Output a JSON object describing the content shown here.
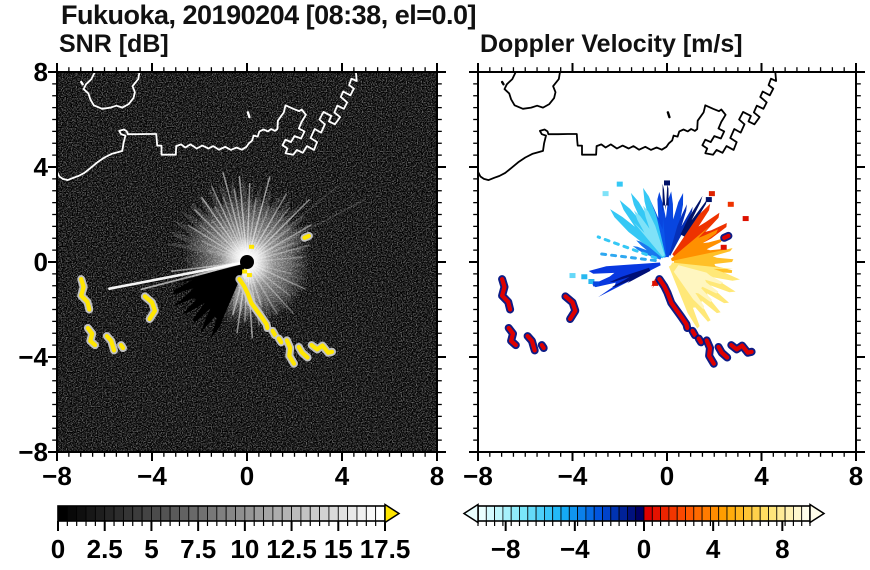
{
  "title": "Fukuoka, 20190204 [08:38, el=0.0]",
  "chart_data": {
    "type": "heatmap",
    "suptitle": "Fukuoka, 20190204 [08:38, el=0.0]",
    "station": "Fukuoka",
    "date": "20190204",
    "time": "08:38",
    "elevation_deg": 0.0,
    "layout": "two radar PPI panels side by side, radar at origin, coastline overlay, horizontal colorbars below",
    "axes": {
      "xlim": [
        -8,
        8
      ],
      "ylim": [
        -8,
        8
      ],
      "major_tick_values": [
        -8,
        -4,
        0,
        4,
        8
      ],
      "minor_tick_step": 0.5,
      "x_tick_labels": [
        "−8",
        "−4",
        "0",
        "4",
        "8"
      ],
      "y_tick_labels": [
        "8",
        "4",
        "0",
        "−4",
        "−8"
      ]
    },
    "panels": [
      {
        "id": "snr",
        "title": "SNR [dB]",
        "bg": "#000000",
        "coast_color": "#ffffff",
        "colorbar": {
          "min": 0,
          "max": 17.5,
          "segments": 35,
          "tick_values": [
            0,
            2.5,
            5,
            7.5,
            10,
            12.5,
            15,
            17.5
          ],
          "tick_labels": [
            "0",
            "2.5",
            "5",
            "7.5",
            "10",
            "12.5",
            "15",
            "17.5"
          ],
          "stops": [
            "#000000",
            "#ffffff"
          ],
          "over_color": "#ffe600",
          "arrows": "right"
        },
        "radar_center": [
          0,
          0
        ],
        "clutter_color": "#ffe600",
        "clutter_halo": "#c9c9c9",
        "fog_wedges": [
          [
            20,
            85,
            3.3,
            0.12
          ],
          [
            85,
            168,
            3.6,
            0.13
          ],
          [
            250,
            292,
            2.4,
            0.2
          ],
          [
            292,
            350,
            2.7,
            0.07
          ],
          [
            -10,
            20,
            2.6,
            0.1
          ],
          [
            168,
            185,
            1.5,
            0.05
          ]
        ],
        "rays": [
          [
            5,
            2.3,
            0.22
          ],
          [
            15,
            2.7,
            0.3
          ],
          [
            22,
            2.1,
            0.25
          ],
          [
            28,
            5.6,
            0.15
          ],
          [
            30,
            3.1,
            0.4
          ],
          [
            38,
            2.3,
            0.3
          ],
          [
            40,
            5.0,
            0.12
          ],
          [
            45,
            3.7,
            0.5
          ],
          [
            52,
            2.9,
            0.35
          ],
          [
            60,
            3.3,
            0.45
          ],
          [
            68,
            2.5,
            0.3
          ],
          [
            75,
            3.7,
            0.55
          ],
          [
            82,
            2.7,
            0.35
          ],
          [
            88,
            3.3,
            0.5
          ],
          [
            95,
            3.6,
            0.55
          ],
          [
            100,
            3.1,
            0.4
          ],
          [
            105,
            3.9,
            0.5
          ],
          [
            110,
            2.9,
            0.35
          ],
          [
            115,
            3.5,
            0.45
          ],
          [
            120,
            2.7,
            0.3
          ],
          [
            125,
            3.3,
            0.5
          ],
          [
            130,
            2.3,
            0.3
          ],
          [
            135,
            3.1,
            0.45
          ],
          [
            142,
            2.5,
            0.3
          ],
          [
            148,
            2.9,
            0.4
          ],
          [
            155,
            2.1,
            0.25
          ],
          [
            163,
            1.7,
            0.18
          ],
          [
            187,
            3.2,
            0.5,
            1.6
          ],
          [
            191,
            5.9,
            0.95,
            2.6
          ],
          [
            194.5,
            4.6,
            0.6,
            1.8
          ],
          [
            255,
            2.3,
            0.42
          ],
          [
            262,
            3.0,
            0.5
          ],
          [
            268,
            2.5,
            0.45
          ],
          [
            274,
            3.2,
            0.55
          ],
          [
            281,
            2.7,
            0.4
          ],
          [
            288,
            1.9,
            0.3
          ],
          [
            300,
            2.5,
            0.3
          ],
          [
            312,
            2.9,
            0.32
          ],
          [
            322,
            2.3,
            0.28
          ],
          [
            335,
            2.7,
            0.33
          ],
          [
            345,
            1.9,
            0.24
          ]
        ],
        "dark_wedges": [
          [
            196,
            247,
            3.6
          ]
        ],
        "center_specks": [
          [
            0.08,
            -0.55
          ],
          [
            0.17,
            0.64
          ],
          [
            -0.12,
            -0.4
          ]
        ]
      },
      {
        "id": "doppler",
        "title": "Doppler Velocity [m/s]",
        "bg": "#ffffff",
        "coast_color": "#000000",
        "colorbar": {
          "min": -9.6,
          "max": 9.6,
          "segments": 40,
          "tick_values": [
            -8,
            -4,
            0,
            4,
            8
          ],
          "tick_labels": [
            "−8",
            "−4",
            "0",
            "4",
            "8"
          ],
          "neg_stops": [
            "#eaffff",
            "#7fe9f9",
            "#18b5f8",
            "#0050dd",
            "#000065"
          ],
          "pos_stops": [
            "#dd0000",
            "#ff5500",
            "#ffa600",
            "#ffe066",
            "#fffdea"
          ],
          "arrows": "both"
        },
        "radar_center": [
          0,
          0
        ],
        "clutter_color": "#dd0000",
        "clutter_halo": "#001080",
        "velocity_patches": [
          [
            72,
            106,
            0.2,
            3.0,
            "#0846e0",
            1
          ],
          [
            95,
            120,
            0.2,
            2.0,
            "#0a55ea",
            0
          ],
          [
            103,
            142,
            0.25,
            3.3,
            "#35c8f5",
            1
          ],
          [
            108,
            130,
            0.3,
            2.6,
            "#7fe2f8",
            1
          ],
          [
            140,
            160,
            0.3,
            1.6,
            "#1a78ee",
            1
          ],
          [
            62,
            74,
            0.3,
            2.6,
            "#0630b8",
            1
          ],
          [
            55,
            64,
            1.3,
            3.2,
            "#001268",
            1
          ],
          [
            88,
            95,
            2.4,
            3.35,
            "#001268",
            1
          ],
          [
            28,
            56,
            0.4,
            3.1,
            "#ee3300",
            1
          ],
          [
            8,
            40,
            0.2,
            2.6,
            "#ff9000",
            1
          ],
          [
            -12,
            12,
            0.3,
            2.9,
            "#ffc028",
            1
          ],
          [
            -68,
            -6,
            0.2,
            3.2,
            "#ffe878",
            1
          ],
          [
            -55,
            -15,
            0.5,
            2.6,
            "#fff6c0",
            1
          ],
          [
            184,
            207,
            0.3,
            3.4,
            "#0838e0",
            1
          ],
          [
            198,
            208,
            0.8,
            2.6,
            "#001078",
            1
          ],
          [
            235,
            243,
            0.85,
            1.3,
            "#dd1100",
            0
          ]
        ],
        "dashed_rays": [
          [
            160,
            3.1,
            "#35c8f5"
          ],
          [
            173,
            2.9,
            "#2fa8f0"
          ]
        ],
        "specks": [
          [
            -3.5,
            -0.6,
            "#28b8f0"
          ],
          [
            -3.2,
            -0.8,
            "#28b8f0"
          ],
          [
            -3.0,
            -0.9,
            "#0846e0"
          ],
          [
            -4.0,
            -0.55,
            "#66d8f8"
          ],
          [
            2.4,
            0.64,
            "#dd1100"
          ],
          [
            3.33,
            1.85,
            "#dd1100"
          ],
          [
            2.7,
            2.45,
            "#ee3300"
          ],
          [
            1.9,
            2.9,
            "#dd2200"
          ],
          [
            1.77,
            2.65,
            "#001268"
          ],
          [
            0.0,
            3.35,
            "#001268"
          ],
          [
            -2.0,
            3.3,
            "#35c8f5"
          ],
          [
            -2.6,
            2.9,
            "#7fe2f8"
          ],
          [
            -0.5,
            -0.88,
            "#dd1100"
          ]
        ]
      }
    ],
    "coastline": {
      "mainland": [
        [
          -8.05,
          3.9
        ],
        [
          -7.9,
          3.6
        ],
        [
          -7.75,
          3.5
        ],
        [
          -7.55,
          3.45
        ],
        [
          -7.3,
          3.55
        ],
        [
          -7.1,
          3.62
        ],
        [
          -6.85,
          3.75
        ],
        [
          -6.6,
          3.95
        ],
        [
          -6.3,
          4.2
        ],
        [
          -6.0,
          4.4
        ],
        [
          -5.7,
          4.55
        ],
        [
          -5.45,
          4.62
        ],
        [
          -5.25,
          4.68
        ],
        [
          -5.2,
          5.0
        ],
        [
          -5.12,
          5.32
        ],
        [
          -5.3,
          5.38
        ],
        [
          -5.38,
          5.52
        ],
        [
          -5.18,
          5.58
        ],
        [
          -5.06,
          5.5
        ],
        [
          -5.02,
          5.38
        ],
        [
          -4.6,
          5.38
        ],
        [
          -4.2,
          5.39
        ],
        [
          -3.82,
          5.39
        ],
        [
          -3.8,
          5.12
        ],
        [
          -3.78,
          4.9
        ],
        [
          -3.6,
          4.9
        ],
        [
          -3.6,
          4.52
        ],
        [
          -3.3,
          4.52
        ],
        [
          -3.0,
          4.52
        ],
        [
          -2.98,
          4.88
        ],
        [
          -2.78,
          4.95
        ],
        [
          -2.6,
          4.82
        ],
        [
          -2.38,
          4.95
        ],
        [
          -2.12,
          4.78
        ],
        [
          -1.88,
          4.9
        ],
        [
          -1.62,
          4.78
        ],
        [
          -1.42,
          4.88
        ],
        [
          -1.18,
          4.73
        ],
        [
          -0.92,
          4.85
        ],
        [
          -0.68,
          4.72
        ],
        [
          -0.44,
          4.82
        ],
        [
          -0.22,
          4.73
        ],
        [
          -0.02,
          4.85
        ],
        [
          0.08,
          5.0
        ],
        [
          0.22,
          5.12
        ],
        [
          0.28,
          5.32
        ],
        [
          0.45,
          5.28
        ],
        [
          0.52,
          5.5
        ],
        [
          0.7,
          5.58
        ],
        [
          0.88,
          5.5
        ],
        [
          1.02,
          5.6
        ],
        [
          1.18,
          5.52
        ],
        [
          1.28,
          5.6
        ],
        [
          1.3,
          5.95
        ],
        [
          1.55,
          6.3
        ],
        [
          1.62,
          6.6
        ],
        [
          1.95,
          6.45
        ],
        [
          2.2,
          6.35
        ],
        [
          2.3,
          6.42
        ],
        [
          2.48,
          6.2
        ],
        [
          2.3,
          5.9
        ],
        [
          2.18,
          5.62
        ],
        [
          2.42,
          5.5
        ],
        [
          2.28,
          5.2
        ],
        [
          2.0,
          5.3
        ],
        [
          1.85,
          5.05
        ],
        [
          1.62,
          5.15
        ],
        [
          1.5,
          4.92
        ],
        [
          1.7,
          4.78
        ],
        [
          1.62,
          4.58
        ],
        [
          1.95,
          4.52
        ],
        [
          2.1,
          4.72
        ],
        [
          2.35,
          4.6
        ],
        [
          2.52,
          4.88
        ],
        [
          2.82,
          4.72
        ],
        [
          2.95,
          5.05
        ],
        [
          2.68,
          5.22
        ],
        [
          2.85,
          5.6
        ],
        [
          3.12,
          5.45
        ],
        [
          3.28,
          5.8
        ],
        [
          3.05,
          6.0
        ],
        [
          3.22,
          6.32
        ],
        [
          3.55,
          6.15
        ],
        [
          3.45,
          5.92
        ],
        [
          3.7,
          5.8
        ],
        [
          3.92,
          6.1
        ],
        [
          3.68,
          6.3
        ],
        [
          3.8,
          6.58
        ],
        [
          4.08,
          6.45
        ],
        [
          4.22,
          6.72
        ],
        [
          3.95,
          6.95
        ],
        [
          4.05,
          7.18
        ],
        [
          4.35,
          7.02
        ],
        [
          4.5,
          7.3
        ],
        [
          4.3,
          7.45
        ],
        [
          4.4,
          7.72
        ],
        [
          4.62,
          7.62
        ],
        [
          4.58,
          8.05
        ]
      ],
      "island": [
        [
          -6.38,
          8.05
        ],
        [
          -6.55,
          7.7
        ],
        [
          -6.78,
          7.48
        ],
        [
          -6.88,
          7.28
        ],
        [
          -6.68,
          7.1
        ],
        [
          -6.6,
          6.85
        ],
        [
          -6.45,
          6.6
        ],
        [
          -6.1,
          6.45
        ],
        [
          -5.75,
          6.5
        ],
        [
          -5.5,
          6.58
        ],
        [
          -5.25,
          6.5
        ],
        [
          -4.98,
          6.65
        ],
        [
          -4.78,
          6.9
        ],
        [
          -4.72,
          7.15
        ],
        [
          -4.82,
          7.4
        ],
        [
          -4.58,
          7.7
        ],
        [
          -4.52,
          8.05
        ]
      ],
      "islets": [
        [
          [
            -6.98,
            7.58
          ],
          [
            -6.92,
            7.48
          ]
        ],
        [
          [
            0.04,
            6.3
          ],
          [
            0.1,
            6.1
          ]
        ]
      ]
    },
    "clutter_blobs": {
      "west_group": [
        [
          [
            -6.98,
            -0.72
          ],
          [
            -6.88,
            -1.05
          ],
          [
            -6.98,
            -1.42
          ],
          [
            -6.72,
            -1.68
          ],
          [
            -6.64,
            -2.0
          ]
        ],
        [
          [
            -4.3,
            -1.45
          ],
          [
            -4.0,
            -1.7
          ],
          [
            -3.88,
            -2.05
          ],
          [
            -4.1,
            -2.4
          ]
        ],
        [
          [
            -6.7,
            -2.78
          ],
          [
            -6.52,
            -3.02
          ],
          [
            -6.6,
            -3.32
          ],
          [
            -6.4,
            -3.5
          ]
        ],
        [
          [
            -5.9,
            -3.12
          ],
          [
            -5.72,
            -3.32
          ],
          [
            -5.6,
            -3.72
          ]
        ],
        [
          [
            -5.3,
            -3.5
          ],
          [
            -5.22,
            -3.62
          ]
        ]
      ],
      "chain": [
        [
          [
            -0.32,
            -0.72
          ],
          [
            -0.12,
            -1.02
          ],
          [
            0.02,
            -1.3
          ],
          [
            0.18,
            -1.72
          ],
          [
            0.42,
            -2.05
          ],
          [
            0.6,
            -2.3
          ],
          [
            0.82,
            -2.62
          ],
          [
            0.86,
            -2.78
          ]
        ],
        [
          [
            1.08,
            -2.9
          ],
          [
            1.18,
            -3.08
          ]
        ],
        [
          [
            1.34,
            -3.22
          ],
          [
            1.44,
            -3.38
          ]
        ],
        [
          [
            1.68,
            -3.3
          ],
          [
            1.82,
            -3.62
          ],
          [
            1.78,
            -3.95
          ],
          [
            1.98,
            -4.28
          ]
        ],
        [
          [
            2.18,
            -3.58
          ],
          [
            2.32,
            -3.82
          ],
          [
            2.55,
            -4.02
          ]
        ],
        [
          [
            2.72,
            -3.5
          ],
          [
            2.95,
            -3.68
          ],
          [
            3.18,
            -3.52
          ],
          [
            3.42,
            -3.82
          ],
          [
            3.58,
            -3.78
          ]
        ]
      ],
      "dash": [
        [
          [
            2.42,
            1.02
          ],
          [
            2.6,
            1.1
          ]
        ]
      ]
    }
  }
}
